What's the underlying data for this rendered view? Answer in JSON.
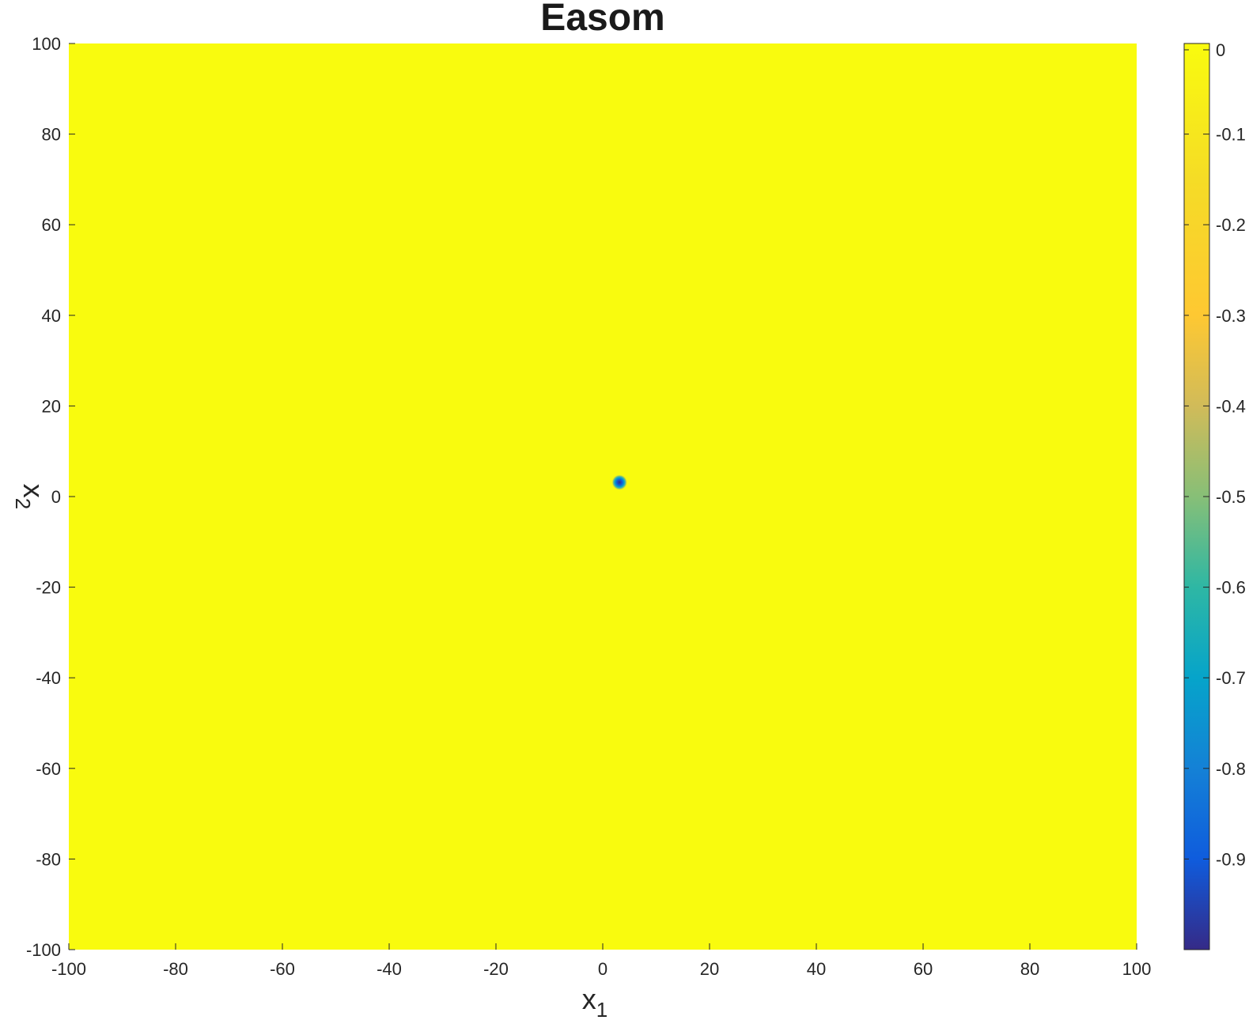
{
  "chart_data": {
    "type": "heatmap",
    "title": "Easom",
    "xlabel": "x",
    "xlabel_subscript": "1",
    "ylabel": "x",
    "ylabel_subscript": "2",
    "xlim": [
      -100,
      100
    ],
    "ylim": [
      -100,
      100
    ],
    "x_ticks": [
      -100,
      -80,
      -60,
      -40,
      -20,
      0,
      20,
      40,
      60,
      80,
      100
    ],
    "y_ticks": [
      -100,
      -80,
      -60,
      -40,
      -20,
      0,
      20,
      40,
      60,
      80,
      100
    ],
    "x_tick_labels": [
      "-100",
      "-80",
      "-60",
      "-40",
      "-20",
      "0",
      "20",
      "40",
      "60",
      "80",
      "100"
    ],
    "y_tick_labels": [
      "-100",
      "-80",
      "-60",
      "-40",
      "-20",
      "0",
      "20",
      "40",
      "60",
      "80",
      "100"
    ],
    "colorbar": {
      "range": [
        -1,
        0
      ],
      "ticks": [
        0,
        -0.1,
        -0.2,
        -0.3,
        -0.4,
        -0.5,
        -0.6,
        -0.7,
        -0.8,
        -0.9
      ],
      "tick_labels": [
        "0",
        "-0.1",
        "-0.2",
        "-0.3",
        "-0.4",
        "-0.5",
        "-0.6",
        "-0.7",
        "-0.8",
        "-0.9"
      ],
      "colormap": "parula"
    },
    "background_value": 0,
    "minimum": {
      "x": 3.14,
      "y": 3.14,
      "value": -1
    },
    "grid": false
  },
  "colors": {
    "high": "#f9fb0e",
    "low": "#352a87"
  }
}
